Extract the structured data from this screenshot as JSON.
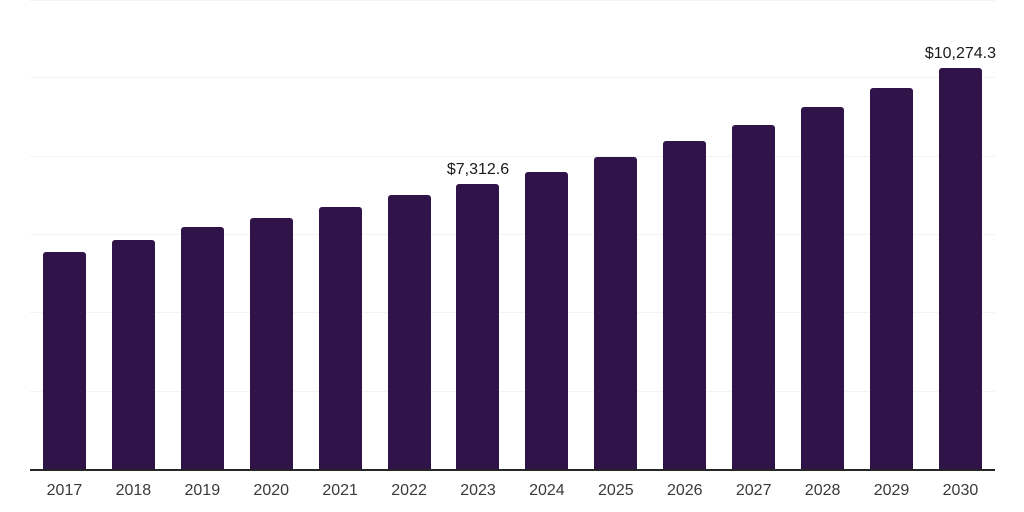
{
  "chart_data": {
    "type": "bar",
    "title": "",
    "xlabel": "",
    "ylabel": "",
    "categories": [
      "2017",
      "2018",
      "2019",
      "2020",
      "2021",
      "2022",
      "2023",
      "2024",
      "2025",
      "2026",
      "2027",
      "2028",
      "2029",
      "2030"
    ],
    "series": [
      {
        "name": "market-value-usd-millions",
        "values": [
          5565,
          5870,
          6205,
          6435,
          6715,
          7020,
          7312.6,
          7610,
          7990,
          8400,
          8810,
          9265,
          9750,
          10274.3
        ]
      }
    ],
    "data_labels": {
      "2023": "$7,312.6",
      "2030": "$10,274.3"
    },
    "ylim": [
      0,
      12000
    ],
    "gridline_step": 2000,
    "grid": true,
    "legend_position": "none",
    "y_axis_labels_visible": false,
    "colors": {
      "bar": "#301349",
      "gridline": "#f3f3f3",
      "axis": "#262626",
      "tick_label": "#3a3a3a",
      "data_label": "#1a1a1a",
      "background": "#ffffff"
    }
  }
}
